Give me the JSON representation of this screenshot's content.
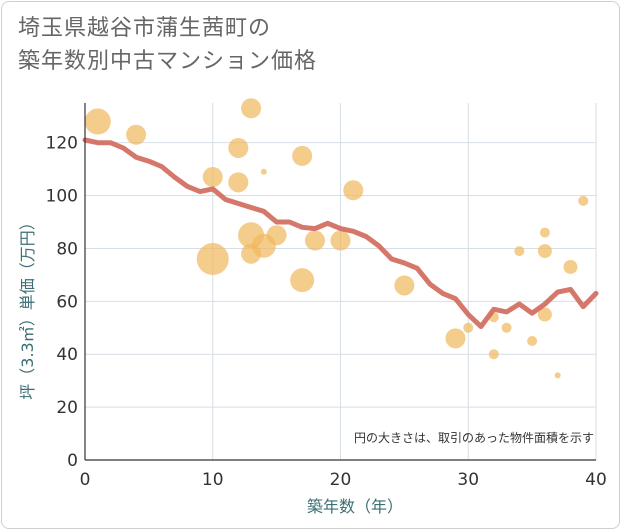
{
  "chart_data": {
    "type": "scatter",
    "title_lines": [
      "埼玉県越谷市蒲生茜町の",
      "築年数別中古マンション価格"
    ],
    "xlabel": "築年数（年）",
    "ylabel": "坪（3.3㎡）単価（万円）",
    "xlim": [
      0,
      40
    ],
    "ylim": [
      0,
      135
    ],
    "x_ticks": [
      0,
      10,
      20,
      30,
      40
    ],
    "y_ticks": [
      0,
      20,
      40,
      60,
      80,
      100,
      120
    ],
    "grid": true,
    "note": "円の大きさは、取引のあった物件面積を示す",
    "colors": {
      "bubble": "#f0b860",
      "line": "#d0685a",
      "grid": "#d6dee6",
      "axis": "#333333"
    },
    "bubbles": [
      {
        "x": 1,
        "y": 128,
        "r": 13
      },
      {
        "x": 4,
        "y": 123,
        "r": 10
      },
      {
        "x": 10,
        "y": 107,
        "r": 10
      },
      {
        "x": 10,
        "y": 76,
        "r": 16
      },
      {
        "x": 12,
        "y": 118,
        "r": 10
      },
      {
        "x": 12,
        "y": 105,
        "r": 10
      },
      {
        "x": 13,
        "y": 133,
        "r": 10
      },
      {
        "x": 13,
        "y": 85,
        "r": 13
      },
      {
        "x": 13,
        "y": 78,
        "r": 10
      },
      {
        "x": 14,
        "y": 109,
        "r": 3
      },
      {
        "x": 14,
        "y": 81,
        "r": 12
      },
      {
        "x": 15,
        "y": 85,
        "r": 10
      },
      {
        "x": 17,
        "y": 115,
        "r": 10
      },
      {
        "x": 17,
        "y": 68,
        "r": 12
      },
      {
        "x": 18,
        "y": 83,
        "r": 10
      },
      {
        "x": 20,
        "y": 83,
        "r": 10
      },
      {
        "x": 21,
        "y": 102,
        "r": 10
      },
      {
        "x": 25,
        "y": 66,
        "r": 10
      },
      {
        "x": 29,
        "y": 46,
        "r": 10
      },
      {
        "x": 30,
        "y": 50,
        "r": 5
      },
      {
        "x": 32,
        "y": 54,
        "r": 5
      },
      {
        "x": 32,
        "y": 40,
        "r": 5
      },
      {
        "x": 33,
        "y": 50,
        "r": 5
      },
      {
        "x": 34,
        "y": 79,
        "r": 5
      },
      {
        "x": 35,
        "y": 45,
        "r": 5
      },
      {
        "x": 36,
        "y": 86,
        "r": 5
      },
      {
        "x": 36,
        "y": 79,
        "r": 7
      },
      {
        "x": 36,
        "y": 55,
        "r": 7
      },
      {
        "x": 37,
        "y": 32,
        "r": 3
      },
      {
        "x": 38,
        "y": 73,
        "r": 7
      },
      {
        "x": 39,
        "y": 98,
        "r": 5
      }
    ],
    "trend": [
      {
        "x": 0,
        "y": 121
      },
      {
        "x": 1,
        "y": 120
      },
      {
        "x": 2,
        "y": 120
      },
      {
        "x": 3,
        "y": 118
      },
      {
        "x": 4,
        "y": 114.5
      },
      {
        "x": 5,
        "y": 113
      },
      {
        "x": 6,
        "y": 111
      },
      {
        "x": 7,
        "y": 107
      },
      {
        "x": 8,
        "y": 103.5
      },
      {
        "x": 9,
        "y": 101.5
      },
      {
        "x": 10,
        "y": 102.5
      },
      {
        "x": 11,
        "y": 98.5
      },
      {
        "x": 12,
        "y": 97
      },
      {
        "x": 13,
        "y": 95.5
      },
      {
        "x": 14,
        "y": 94
      },
      {
        "x": 15,
        "y": 90
      },
      {
        "x": 16,
        "y": 90
      },
      {
        "x": 17,
        "y": 88
      },
      {
        "x": 18,
        "y": 87.5
      },
      {
        "x": 19,
        "y": 89.5
      },
      {
        "x": 20,
        "y": 87.5
      },
      {
        "x": 21,
        "y": 86.5
      },
      {
        "x": 22,
        "y": 84.5
      },
      {
        "x": 23,
        "y": 81
      },
      {
        "x": 24,
        "y": 76
      },
      {
        "x": 25,
        "y": 74.5
      },
      {
        "x": 26,
        "y": 72.5
      },
      {
        "x": 27,
        "y": 66.5
      },
      {
        "x": 28,
        "y": 63
      },
      {
        "x": 29,
        "y": 61
      },
      {
        "x": 30,
        "y": 55
      },
      {
        "x": 31,
        "y": 50.5
      },
      {
        "x": 32,
        "y": 57
      },
      {
        "x": 33,
        "y": 56
      },
      {
        "x": 34,
        "y": 59
      },
      {
        "x": 35,
        "y": 55.5
      },
      {
        "x": 36,
        "y": 59
      },
      {
        "x": 37,
        "y": 63.5
      },
      {
        "x": 38,
        "y": 64.5
      },
      {
        "x": 39,
        "y": 58
      },
      {
        "x": 40,
        "y": 63
      }
    ]
  }
}
